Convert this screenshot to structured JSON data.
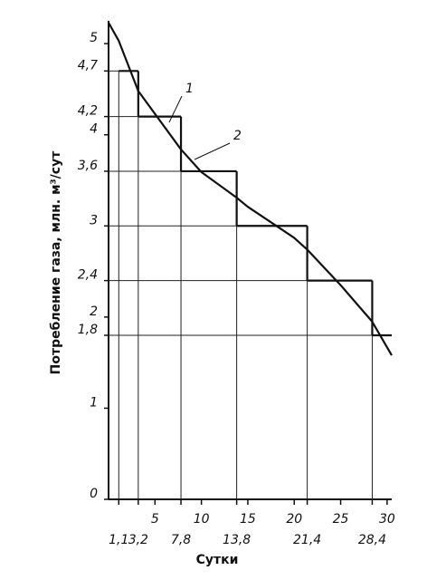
{
  "chart_data": {
    "type": "line",
    "xlabel": "Сутки",
    "ylabel": "Потребление газа, млн. м³/сут",
    "xlim": [
      0,
      30.5
    ],
    "ylim": [
      0,
      5.25
    ],
    "xticks": [
      {
        "value": 1.1,
        "label": "1,1"
      },
      {
        "value": 3.2,
        "label": "3,2"
      },
      5,
      {
        "value": 7.8,
        "label": "7,8"
      },
      10,
      {
        "value": 13.8,
        "label": "13,8"
      },
      15,
      20,
      {
        "value": 21.4,
        "label": "21,4"
      },
      25,
      {
        "value": 28.4,
        "label": "28,4"
      },
      30
    ],
    "yticks": [
      0,
      1,
      {
        "value": 1.8,
        "label": "1,8"
      },
      2,
      {
        "value": 2.4,
        "label": "2,4"
      },
      3,
      {
        "value": 3.6,
        "label": "3,6"
      },
      4,
      {
        "value": 4.2,
        "label": "4,2"
      },
      {
        "value": 4.7,
        "label": "4,7"
      },
      5
    ],
    "series": [
      {
        "name": "1",
        "style": "curve",
        "color": "#111",
        "x": [
          0,
          1.1,
          3.2,
          7.8,
          10,
          13.8,
          15,
          20,
          21.4,
          25,
          28.4,
          30.5
        ],
        "values": [
          5.23,
          5.03,
          4.48,
          3.84,
          3.59,
          3.31,
          3.21,
          2.87,
          2.74,
          2.35,
          1.95,
          1.58
        ]
      },
      {
        "name": "2",
        "style": "step",
        "color": "#111",
        "x": [
          1.1,
          3.2,
          7.8,
          13.8,
          21.4,
          28.4
        ],
        "values": [
          4.7,
          4.2,
          3.6,
          3.0,
          2.4,
          1.8
        ]
      }
    ]
  }
}
